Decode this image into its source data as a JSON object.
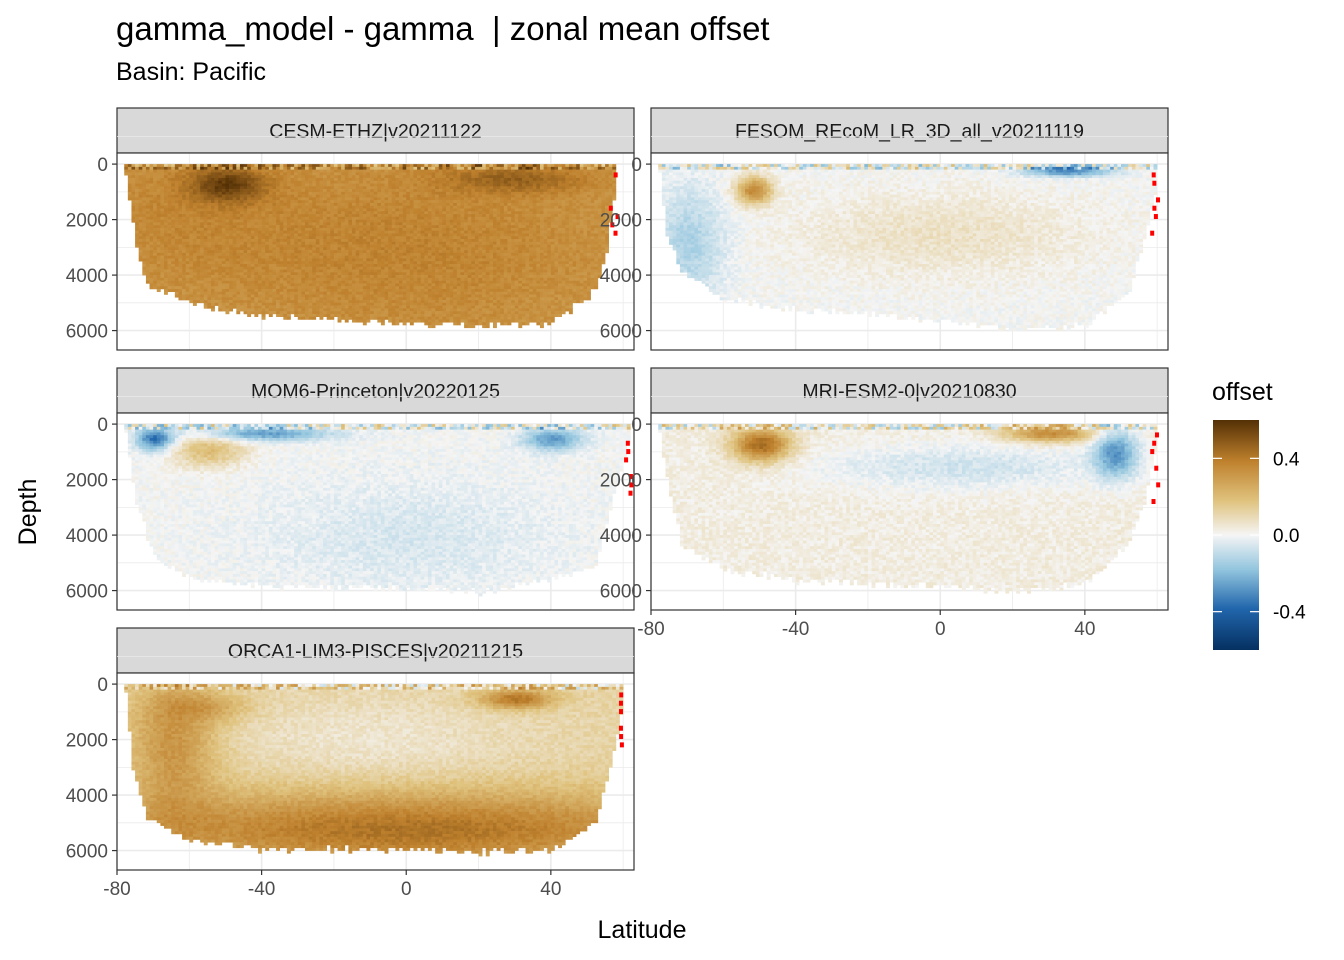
{
  "chart_data": {
    "type": "heatmap",
    "title": "gamma_model - gamma  | zonal mean offset",
    "subtitle": "Basin: Pacific",
    "xlabel": "Latitude",
    "ylabel": "Depth",
    "xlim": [
      -80,
      63
    ],
    "ylim": [
      6700,
      -400
    ],
    "y_reversed": true,
    "x_ticks": [
      -80,
      -40,
      0,
      40
    ],
    "y_ticks": [
      0,
      2000,
      4000,
      6000
    ],
    "grid": true,
    "legend": {
      "title": "offset",
      "placement": "right",
      "ticks": [
        0.4,
        0.0,
        -0.4
      ],
      "tick_labels": [
        "0.4",
        "0.0",
        "-0.4"
      ],
      "range": [
        -0.6,
        0.6
      ],
      "colors": {
        "low": "#053061",
        "mid_low": "#2166ac",
        "light_blue": "#92c5de",
        "mid": "#f5f5f5",
        "light_brown": "#dfc27d",
        "mid_high": "#bf812d",
        "high": "#543005"
      },
      "out_of_range_color": "#ff0000"
    },
    "panels": [
      {
        "name": "CESM-ETHZ|v20211122",
        "lat_range": [
          -78,
          58
        ],
        "bottom_depth": [
          [
            -78,
            300
          ],
          [
            -75,
            3000
          ],
          [
            -72,
            4300
          ],
          [
            -60,
            5000
          ],
          [
            -40,
            5400
          ],
          [
            0,
            5700
          ],
          [
            20,
            5800
          ],
          [
            40,
            5700
          ],
          [
            52,
            4500
          ],
          [
            55,
            3000
          ],
          [
            58,
            500
          ]
        ],
        "field": [
          {
            "lat": -65,
            "depth": 1500,
            "value": 0.35,
            "sigma_lat": 30,
            "sigma_depth": 3000
          },
          {
            "lat": -50,
            "depth": 700,
            "value": 0.55,
            "sigma_lat": 10,
            "sigma_depth": 600
          },
          {
            "lat": 0,
            "depth": 3000,
            "value": 0.38,
            "sigma_lat": 60,
            "sigma_depth": 3500
          },
          {
            "lat": 30,
            "depth": 500,
            "value": 0.45,
            "sigma_lat": 20,
            "sigma_depth": 500
          }
        ],
        "base_value": 0.3
      },
      {
        "name": "FESOM_REcoM_LR_3D_all_v20211119",
        "lat_range": [
          -78,
          60
        ],
        "bottom_depth": [
          [
            -78,
            300
          ],
          [
            -76,
            2500
          ],
          [
            -72,
            3800
          ],
          [
            -60,
            4800
          ],
          [
            -40,
            5200
          ],
          [
            0,
            5600
          ],
          [
            20,
            5900
          ],
          [
            40,
            5800
          ],
          [
            52,
            4500
          ],
          [
            56,
            2600
          ],
          [
            60,
            400
          ]
        ],
        "field": [
          {
            "lat": -52,
            "depth": 900,
            "value": 0.4,
            "sigma_lat": 5,
            "sigma_depth": 500
          },
          {
            "lat": -70,
            "depth": 2800,
            "value": -0.15,
            "sigma_lat": 10,
            "sigma_depth": 2000
          },
          {
            "lat": 35,
            "depth": 200,
            "value": -0.35,
            "sigma_lat": 12,
            "sigma_depth": 200
          },
          {
            "lat": 0,
            "depth": 2500,
            "value": 0.08,
            "sigma_lat": 40,
            "sigma_depth": 1500
          }
        ],
        "base_value": 0.0
      },
      {
        "name": "MOM6-Princeton|v20220125",
        "lat_range": [
          -78,
          62
        ],
        "bottom_depth": [
          [
            -78,
            300
          ],
          [
            -75,
            2800
          ],
          [
            -70,
            4800
          ],
          [
            -60,
            5500
          ],
          [
            -40,
            5800
          ],
          [
            0,
            5900
          ],
          [
            20,
            6000
          ],
          [
            40,
            5500
          ],
          [
            52,
            5000
          ],
          [
            56,
            3000
          ],
          [
            62,
            300
          ]
        ],
        "field": [
          {
            "lat": -40,
            "depth": 300,
            "value": -0.3,
            "sigma_lat": 18,
            "sigma_depth": 250
          },
          {
            "lat": -70,
            "depth": 500,
            "value": -0.4,
            "sigma_lat": 5,
            "sigma_depth": 400
          },
          {
            "lat": -55,
            "depth": 900,
            "value": 0.22,
            "sigma_lat": 10,
            "sigma_depth": 600
          },
          {
            "lat": 40,
            "depth": 500,
            "value": -0.3,
            "sigma_lat": 8,
            "sigma_depth": 400
          },
          {
            "lat": 0,
            "depth": 4000,
            "value": -0.06,
            "sigma_lat": 40,
            "sigma_depth": 2000
          }
        ],
        "base_value": 0.0
      },
      {
        "name": "MRI-ESM2-0|v20210830",
        "lat_range": [
          -78,
          60
        ],
        "bottom_depth": [
          [
            -78,
            300
          ],
          [
            -75,
            2600
          ],
          [
            -72,
            4200
          ],
          [
            -60,
            5200
          ],
          [
            -40,
            5600
          ],
          [
            0,
            5800
          ],
          [
            20,
            6000
          ],
          [
            40,
            5700
          ],
          [
            52,
            4200
          ],
          [
            56,
            2800
          ],
          [
            60,
            400
          ]
        ],
        "field": [
          {
            "lat": -50,
            "depth": 700,
            "value": 0.5,
            "sigma_lat": 8,
            "sigma_depth": 600
          },
          {
            "lat": 30,
            "depth": 300,
            "value": 0.4,
            "sigma_lat": 12,
            "sigma_depth": 300
          },
          {
            "lat": 48,
            "depth": 1000,
            "value": -0.3,
            "sigma_lat": 6,
            "sigma_depth": 900
          },
          {
            "lat": 5,
            "depth": 1500,
            "value": -0.08,
            "sigma_lat": 40,
            "sigma_depth": 800
          }
        ],
        "base_value": 0.03
      },
      {
        "name": "ORCA1-LIM3-PISCES|v20211215",
        "lat_range": [
          -78,
          60
        ],
        "bottom_depth": [
          [
            -78,
            300
          ],
          [
            -76,
            3000
          ],
          [
            -72,
            4800
          ],
          [
            -60,
            5600
          ],
          [
            -40,
            5900
          ],
          [
            0,
            5900
          ],
          [
            20,
            6000
          ],
          [
            40,
            5900
          ],
          [
            52,
            5000
          ],
          [
            56,
            3000
          ],
          [
            60,
            400
          ]
        ],
        "field": [
          {
            "lat": 0,
            "depth": 5200,
            "value": 0.45,
            "sigma_lat": 90,
            "sigma_depth": 1400
          },
          {
            "lat": -65,
            "depth": 2000,
            "value": 0.35,
            "sigma_lat": 12,
            "sigma_depth": 2500
          },
          {
            "lat": 30,
            "depth": 500,
            "value": 0.45,
            "sigma_lat": 10,
            "sigma_depth": 350
          },
          {
            "lat": -55,
            "depth": 800,
            "value": 0.25,
            "sigma_lat": 12,
            "sigma_depth": 500
          },
          {
            "lat": -10,
            "depth": 2000,
            "value": 0.05,
            "sigma_lat": 40,
            "sigma_depth": 1500
          }
        ],
        "base_value": 0.12
      }
    ]
  }
}
